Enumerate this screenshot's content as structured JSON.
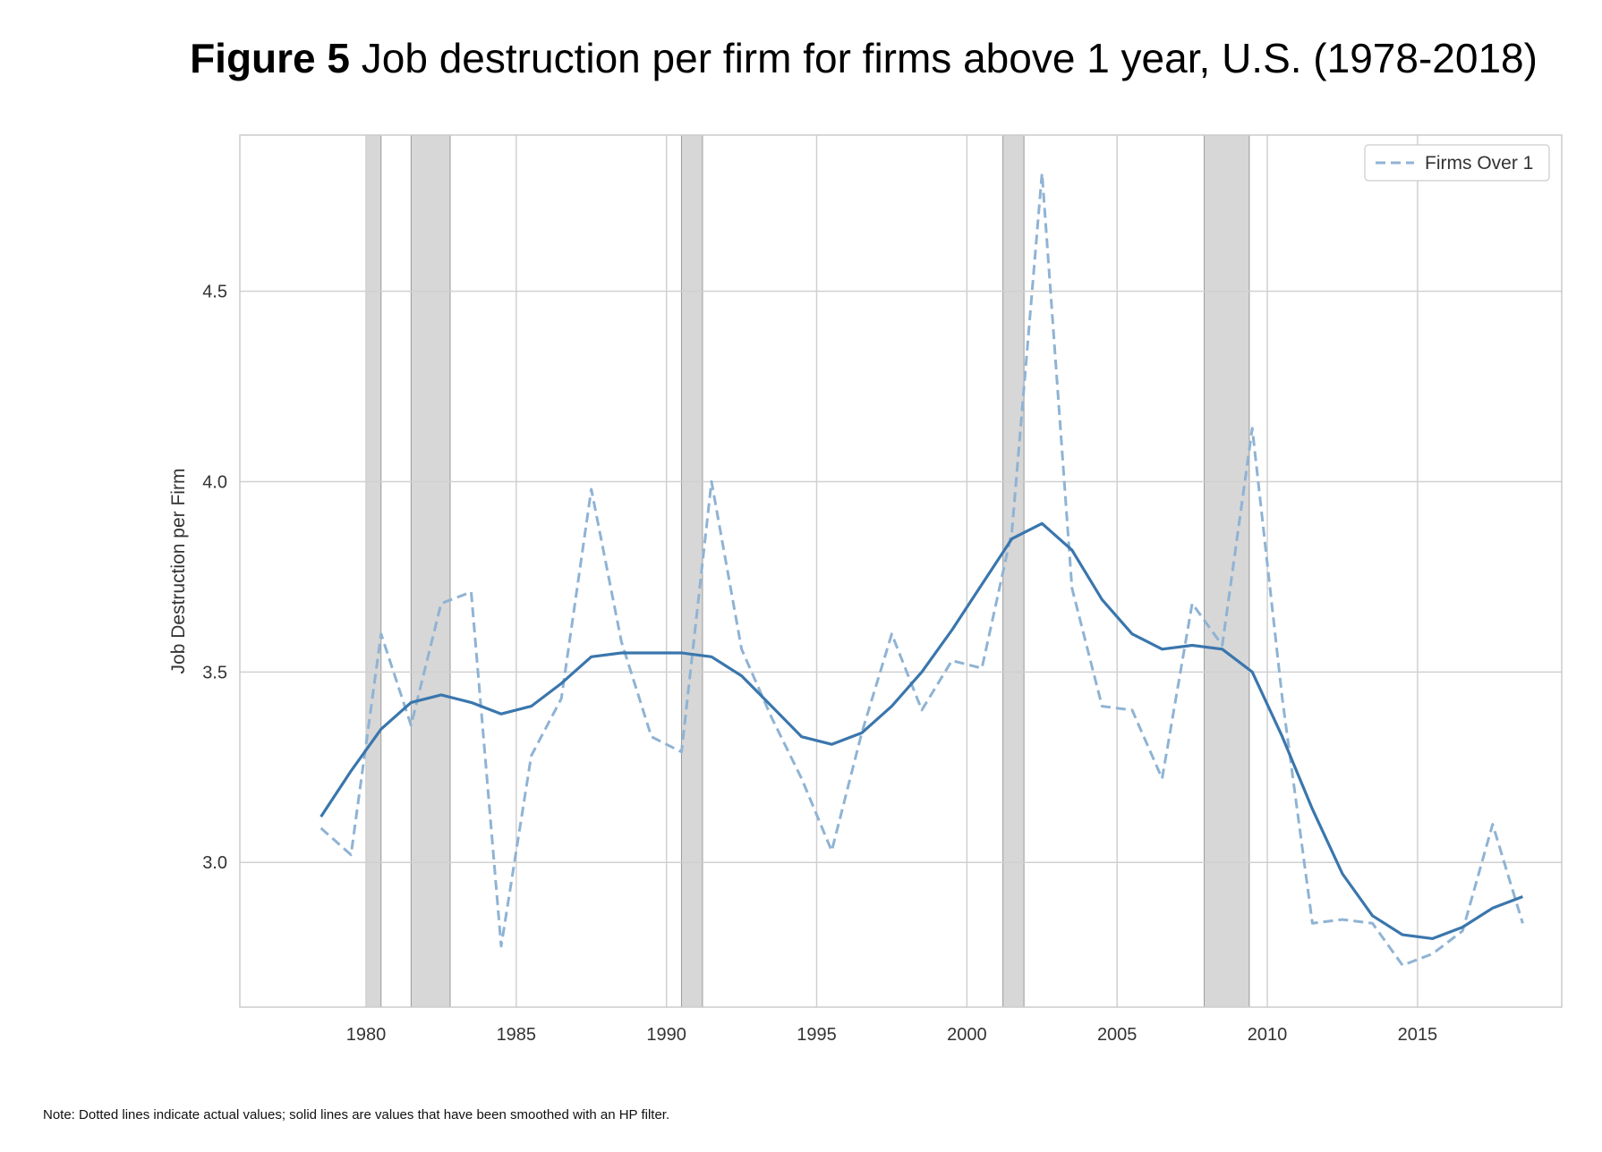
{
  "figure": {
    "label": "Figure 5",
    "title": "Job destruction per firm for firms above 1 year, U.S. (1978-2018)",
    "note": "Note: Dotted lines indicate actual values; solid lines are values that have been smoothed with an HP filter."
  },
  "chart_data": {
    "type": "line",
    "title": "Figure 5 Job destruction per firm for firms above 1 year, U.S. (1978-2018)",
    "xlabel": "",
    "ylabel": "Job Destruction per Firm",
    "xlim": [
      1975.8,
      2019.8
    ],
    "ylim": [
      2.62,
      4.91
    ],
    "x_ticks": [
      "1980",
      "1985",
      "1990",
      "1995",
      "2000",
      "2005",
      "2010",
      "2015"
    ],
    "y_ticks": [
      "3.0",
      "3.5",
      "4.0",
      "4.5"
    ],
    "grid": true,
    "legend_position": "top-right",
    "recessions": [
      [
        1980.0,
        1980.5
      ],
      [
        1981.5,
        1982.8
      ],
      [
        1990.5,
        1991.2
      ],
      [
        2001.2,
        2001.9
      ],
      [
        2007.9,
        2009.4
      ]
    ],
    "series": [
      {
        "name": "Firms Over 1",
        "style": "dashed",
        "color": "#8fb3d4",
        "x": [
          1978.5,
          1979.5,
          1980.5,
          1981.5,
          1982.5,
          1983.5,
          1984.5,
          1985.5,
          1986.5,
          1987.5,
          1988.5,
          1989.5,
          1990.5,
          1991.5,
          1992.5,
          1993.5,
          1994.5,
          1995.5,
          1996.5,
          1997.5,
          1998.5,
          1999.5,
          2000.5,
          2001.5,
          2002.5,
          2003.5,
          2004.5,
          2005.5,
          2006.5,
          2007.5,
          2008.5,
          2009.5,
          2010.5,
          2011.5,
          2012.5,
          2013.5,
          2014.5,
          2015.5,
          2016.5,
          2017.5,
          2018.5
        ],
        "values": [
          3.09,
          3.02,
          3.6,
          3.36,
          3.68,
          3.71,
          2.78,
          3.28,
          3.43,
          3.98,
          3.58,
          3.33,
          3.29,
          4.0,
          3.56,
          3.38,
          3.22,
          3.03,
          3.34,
          3.6,
          3.4,
          3.53,
          3.51,
          3.87,
          4.81,
          3.72,
          3.41,
          3.4,
          3.22,
          3.68,
          3.57,
          4.14,
          3.43,
          2.84,
          2.85,
          2.84,
          2.73,
          2.76,
          2.82,
          3.1,
          2.84
        ]
      },
      {
        "name": "",
        "style": "solid",
        "color": "#3a76ad",
        "x": [
          1978.5,
          1979.5,
          1980.5,
          1981.5,
          1982.5,
          1983.5,
          1984.5,
          1985.5,
          1986.5,
          1987.5,
          1988.5,
          1989.5,
          1990.5,
          1991.5,
          1992.5,
          1993.5,
          1994.5,
          1995.5,
          1996.5,
          1997.5,
          1998.5,
          1999.5,
          2000.5,
          2001.5,
          2002.5,
          2003.5,
          2004.5,
          2005.5,
          2006.5,
          2007.5,
          2008.5,
          2009.5,
          2010.5,
          2011.5,
          2012.5,
          2013.5,
          2014.5,
          2015.5,
          2016.5,
          2017.5,
          2018.5
        ],
        "values": [
          3.12,
          3.24,
          3.35,
          3.42,
          3.44,
          3.42,
          3.39,
          3.41,
          3.47,
          3.54,
          3.55,
          3.55,
          3.55,
          3.54,
          3.49,
          3.41,
          3.33,
          3.31,
          3.34,
          3.41,
          3.5,
          3.61,
          3.73,
          3.85,
          3.89,
          3.82,
          3.69,
          3.6,
          3.56,
          3.57,
          3.56,
          3.5,
          3.33,
          3.14,
          2.97,
          2.86,
          2.81,
          2.8,
          2.83,
          2.88,
          2.91
        ]
      }
    ]
  }
}
